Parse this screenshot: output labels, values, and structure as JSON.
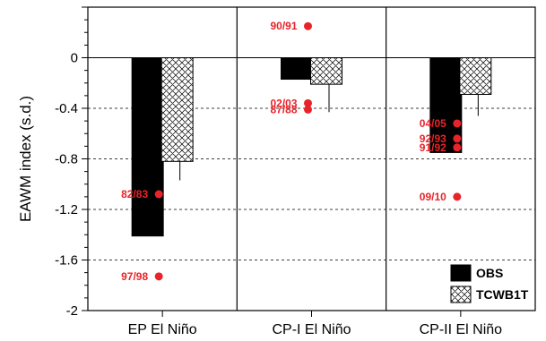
{
  "chart_data": {
    "type": "bar",
    "title": "",
    "xlabel": "",
    "ylabel": "EAWM index (s.d.)",
    "ylim": [
      -2,
      0.4
    ],
    "yticks": [
      0,
      -0.4,
      -0.8,
      -1.2,
      -1.6,
      -2
    ],
    "ytick_labels": [
      "0",
      "-0.4",
      "-0.8",
      "-1.2",
      "-1.6",
      "-2"
    ],
    "grid": "horizontal dashed",
    "categories": [
      "EP El Niño",
      "CP-I El Niño",
      "CP-II El Niño"
    ],
    "series": [
      {
        "name": "OBS",
        "pattern": "solid",
        "color": "#000000",
        "values": [
          -1.41,
          -0.17,
          -0.75
        ]
      },
      {
        "name": "TCWB1T",
        "pattern": "crosshatch",
        "color": "#ffffff",
        "values": [
          -0.82,
          -0.21,
          -0.29
        ],
        "error_low": [
          -0.97,
          -0.43,
          -0.46
        ]
      }
    ],
    "points": [
      {
        "category": 0,
        "label": "82/83",
        "value": -1.08
      },
      {
        "category": 0,
        "label": "97/98",
        "value": -1.73
      },
      {
        "category": 1,
        "label": "90/91",
        "value": 0.25
      },
      {
        "category": 1,
        "label": "02/03",
        "value": -0.36
      },
      {
        "category": 1,
        "label": "87/88",
        "value": -0.41
      },
      {
        "category": 2,
        "label": "04/05",
        "value": -0.52
      },
      {
        "category": 2,
        "label": "92/93",
        "value": -0.64
      },
      {
        "category": 2,
        "label": "91/92",
        "value": -0.71
      },
      {
        "category": 2,
        "label": "09/10",
        "value": -1.1
      }
    ],
    "point_color": "#e8232a",
    "legend_position": "bottom-right"
  }
}
